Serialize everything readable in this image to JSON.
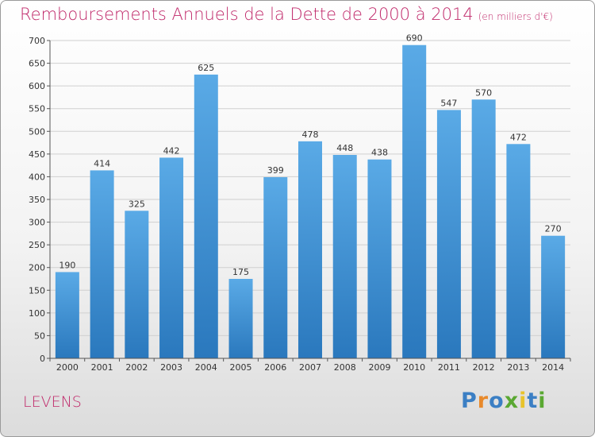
{
  "title": "Remboursements Annuels de la Dette de 2000 à 2014",
  "unit": "(en milliers d'€)",
  "place": "LEVENS",
  "brand": {
    "letters": [
      "P",
      "r",
      "o",
      "x",
      "i",
      "t",
      "i"
    ],
    "colors": [
      "#3b7fc4",
      "#e8892b",
      "#3b7fc4",
      "#5aa832",
      "#e8c32b",
      "#3b7fc4",
      "#5aa832"
    ]
  },
  "colors": {
    "bar_top": "#5aaae6",
    "bar_bottom": "#2a78bd",
    "title": "#c0296a",
    "grid": "#d0d0d0"
  },
  "chart_data": {
    "type": "bar",
    "title": "Remboursements Annuels de la Dette de 2000 à 2014",
    "categories": [
      "2000",
      "2001",
      "2002",
      "2003",
      "2004",
      "2005",
      "2006",
      "2007",
      "2008",
      "2009",
      "2010",
      "2011",
      "2012",
      "2013",
      "2014"
    ],
    "values": [
      190,
      414,
      325,
      442,
      625,
      175,
      399,
      478,
      448,
      438,
      690,
      547,
      570,
      472,
      270
    ],
    "xlabel": "",
    "ylabel": "",
    "ylim": [
      0,
      700
    ],
    "yticks": [
      0,
      50,
      100,
      150,
      200,
      250,
      300,
      350,
      400,
      450,
      500,
      550,
      600,
      650,
      700
    ],
    "grid": true,
    "legend": "none"
  }
}
